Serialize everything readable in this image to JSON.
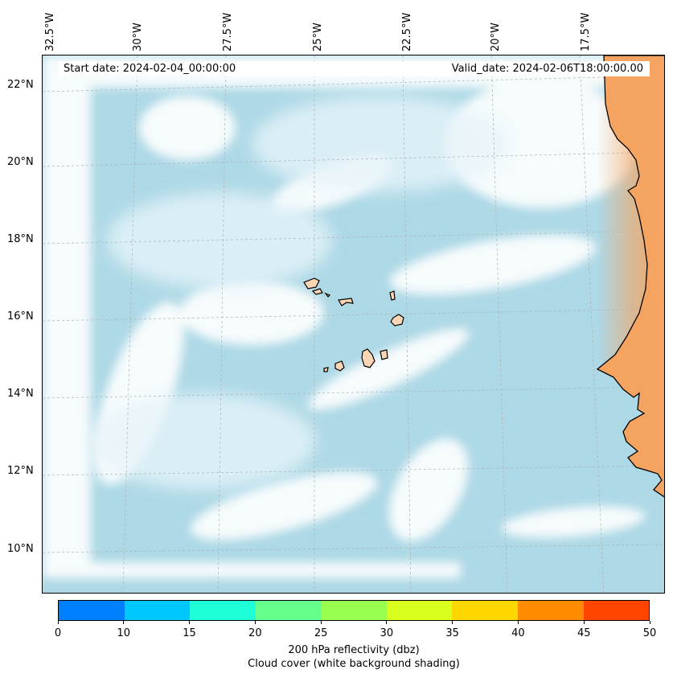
{
  "map": {
    "start_date": "Start date: 2024-02-04_00:00:00",
    "valid_date": "Valid_date: 2024-02-06T18:00:00.00",
    "lon_labels": [
      "32.5°W",
      "30°W",
      "27.5°W",
      "25°W",
      "22.5°W",
      "20°W",
      "17.5°W"
    ],
    "lat_labels": [
      "22°N",
      "20°N",
      "18°N",
      "16°N",
      "14°N",
      "12°N",
      "10°N"
    ],
    "colors": {
      "ocean_cloud": "#add8e6",
      "land": "#f4a460",
      "islands": "#fcd5b4",
      "coastline": "#000000",
      "gridline": "#b0b0b0"
    }
  },
  "colorbar": {
    "ticks": [
      "0",
      "10",
      "15",
      "20",
      "25",
      "30",
      "35",
      "40",
      "45",
      "50"
    ],
    "colors": [
      "#0080ff",
      "#00c8ff",
      "#1effd8",
      "#64ff8c",
      "#98ff50",
      "#d8ff1e",
      "#ffd700",
      "#ff8c00",
      "#ff4500"
    ],
    "label_line1": "200 hPa reflectivity (dbz)",
    "label_line2": "Cloud cover (white background shading)"
  }
}
